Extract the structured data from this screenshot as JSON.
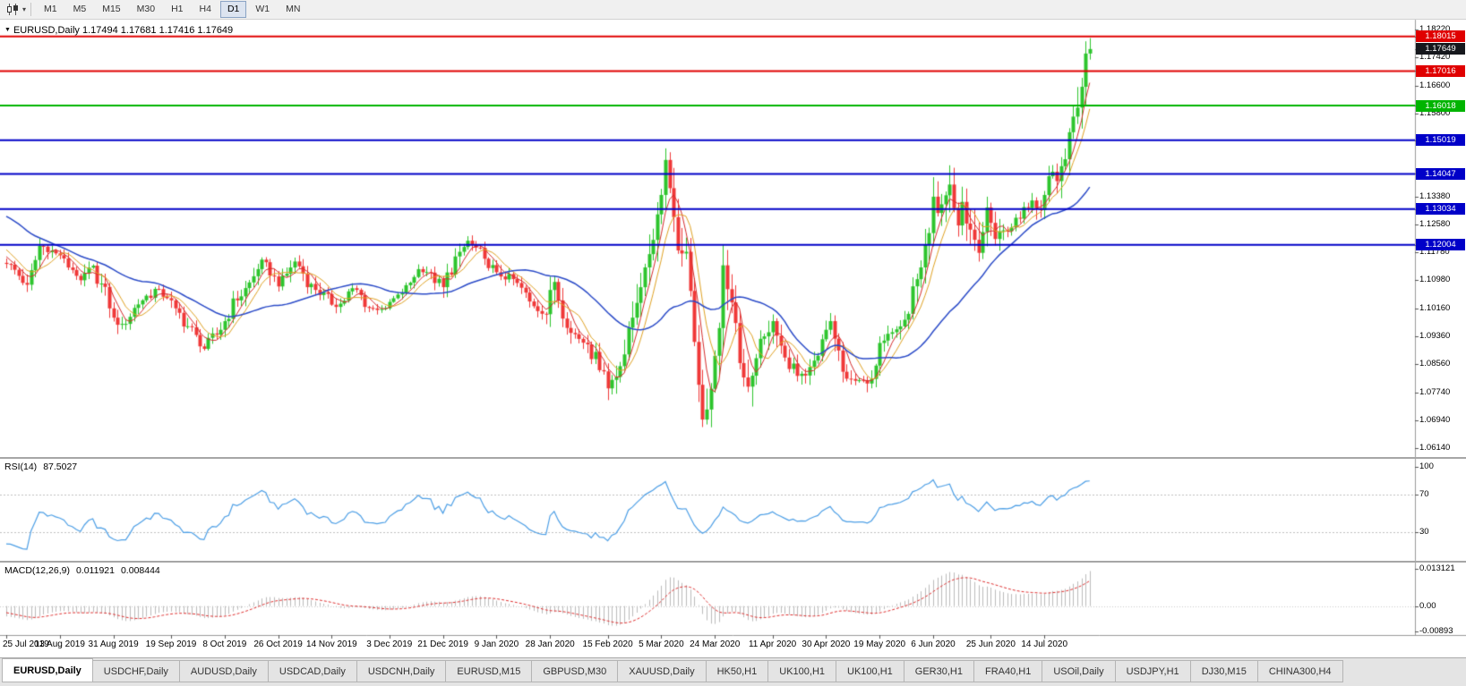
{
  "toolbar": {
    "timeframes": [
      "M1",
      "M5",
      "M15",
      "M30",
      "H1",
      "H4",
      "D1",
      "W1",
      "MN"
    ],
    "active_timeframe": "D1"
  },
  "icons": {
    "chart_type_caret": "▾",
    "symbol_marker": "▼"
  },
  "chart": {
    "title": "EURUSD,Daily 1.17494 1.17681 1.17416 1.17649"
  },
  "rsi": {
    "label": "RSI(14)",
    "value": "87.5027",
    "axis_labels": [
      "100",
      "70",
      "30"
    ],
    "level_lines": [
      70,
      30
    ]
  },
  "macd": {
    "label": "MACD(12,26,9)",
    "value_main": "0.011921",
    "value_signal": "0.008444",
    "axis_labels": [
      "0.013121",
      "0.00",
      "-0.00893"
    ]
  },
  "price_scale": {
    "labels": [
      "1.18220",
      "1.17420",
      "1.16600",
      "1.15800",
      "1.13380",
      "1.12580",
      "1.11780",
      "1.10980",
      "1.10160",
      "1.09360",
      "1.08560",
      "1.07740",
      "1.06940",
      "1.06140"
    ]
  },
  "date_axis": {
    "labels": [
      "25 Jul 2019",
      "13 Aug 2019",
      "31 Aug 2019",
      "19 Sep 2019",
      "8 Oct 2019",
      "26 Oct 2019",
      "14 Nov 2019",
      "3 Dec 2019",
      "21 Dec 2019",
      "9 Jan 2020",
      "28 Jan 2020",
      "15 Feb 2020",
      "5 Mar 2020",
      "24 Mar 2020",
      "11 Apr 2020",
      "30 Apr 2020",
      "19 May 2020",
      "6 Jun 2020",
      "25 Jun 2020",
      "14 Jul 2020"
    ],
    "bar_indices": [
      0,
      13,
      26,
      40,
      53,
      66,
      79,
      93,
      106,
      119,
      132,
      146,
      159,
      172,
      186,
      199,
      212,
      225,
      239,
      252
    ]
  },
  "tabs": {
    "items": [
      "EURUSD,Daily",
      "USDCHF,Daily",
      "AUDUSD,Daily",
      "USDCAD,Daily",
      "USDCNH,Daily",
      "EURUSD,M15",
      "GBPUSD,M30",
      "XAUUSD,Daily",
      "HK50,H1",
      "UK100,H1",
      "UK100,H1",
      "GER30,H1",
      "FRA40,H1",
      "USOil,Daily",
      "USDJPY,H1",
      "DJ30,M15",
      "CHINA300,H4"
    ],
    "active_index": 0
  },
  "chart_data": {
    "type": "candlestick",
    "symbol": "EURUSD",
    "period": "Daily",
    "ohlc_current": {
      "open": 1.17494,
      "high": 1.17681,
      "low": 1.17416,
      "close": 1.17649
    },
    "current_price": {
      "value": 1.17649,
      "bg": "#16181D"
    },
    "price_range": {
      "top": 1.18445,
      "bottom": 1.05905
    },
    "visible_bars": 264,
    "pre_bars": 100,
    "candle_colors": {
      "up": "#2DC52D",
      "down": "#F03838"
    },
    "levels": [
      {
        "price": 1.18015,
        "color": "#E00000"
      },
      {
        "price": 1.17016,
        "color": "#E00000"
      },
      {
        "price": 1.16018,
        "color": "#00B400"
      },
      {
        "price": 1.15019,
        "color": "#0000C8"
      },
      {
        "price": 1.14047,
        "color": "#0000C8"
      },
      {
        "price": 1.13034,
        "color": "#0000C8"
      },
      {
        "price": 1.12004,
        "color": "#0000C8"
      }
    ],
    "moving_averages": [
      {
        "period": 5,
        "color": "#D52B2B",
        "width": 1
      },
      {
        "period": 8,
        "color": "#E0A223",
        "width": 1
      },
      {
        "period": 30,
        "color": "#2B4BC8",
        "width": 1.5
      }
    ],
    "indicators": {
      "rsi": {
        "period": 14,
        "current": 87.5027,
        "color": "#4D9FE6"
      },
      "macd": {
        "fast": 12,
        "slow": 26,
        "signal": 9,
        "main": 0.011921,
        "signal_value": 0.008444,
        "scale_max": 0.013121,
        "scale_min": -0.00893,
        "histogram_color": "#BBBBBB",
        "signal_color": "#E03030"
      }
    },
    "close_anchors": [
      [
        -100,
        1.132
      ],
      [
        -75,
        1.122
      ],
      [
        -50,
        1.117
      ],
      [
        -35,
        1.126
      ],
      [
        -25,
        1.1385
      ],
      [
        -12,
        1.127
      ],
      [
        0,
        1.1145
      ],
      [
        5,
        1.1085
      ],
      [
        8,
        1.1197
      ],
      [
        13,
        1.117
      ],
      [
        18,
        1.1098
      ],
      [
        21,
        1.114
      ],
      [
        26,
        1.099
      ],
      [
        28,
        1.0972
      ],
      [
        33,
        1.104
      ],
      [
        36,
        1.1073
      ],
      [
        40,
        1.104
      ],
      [
        41,
        1.1017
      ],
      [
        46,
        1.094
      ],
      [
        48,
        1.09
      ],
      [
        53,
        1.098
      ],
      [
        56,
        1.104
      ],
      [
        61,
        1.113
      ],
      [
        63,
        1.115
      ],
      [
        66,
        1.108
      ],
      [
        70,
        1.1152
      ],
      [
        75,
        1.107
      ],
      [
        80,
        1.1021
      ],
      [
        84,
        1.1075
      ],
      [
        88,
        1.1018
      ],
      [
        92,
        1.1017
      ],
      [
        96,
        1.106
      ],
      [
        100,
        1.113
      ],
      [
        103,
        1.112
      ],
      [
        106,
        1.1078
      ],
      [
        110,
        1.118
      ],
      [
        112,
        1.1212
      ],
      [
        116,
        1.116
      ],
      [
        119,
        1.1121
      ],
      [
        124,
        1.109
      ],
      [
        128,
        1.1023
      ],
      [
        131,
        1.1
      ],
      [
        133,
        1.1093
      ],
      [
        137,
        1.0946
      ],
      [
        141,
        1.0913
      ],
      [
        145,
        1.0835
      ],
      [
        146,
        1.0786
      ],
      [
        149,
        1.085
      ],
      [
        152,
        1.099
      ],
      [
        155,
        1.1135
      ],
      [
        158,
        1.1288
      ],
      [
        160,
        1.1445
      ],
      [
        162,
        1.128
      ],
      [
        163,
        1.1184
      ],
      [
        165,
        1.118
      ],
      [
        167,
        1.092
      ],
      [
        169,
        1.0696
      ],
      [
        170,
        1.0725
      ],
      [
        171,
        1.0785
      ],
      [
        172,
        1.088
      ],
      [
        173,
        1.096
      ],
      [
        174,
        1.1141
      ],
      [
        176,
        1.1034
      ],
      [
        178,
        1.0859
      ],
      [
        180,
        1.0791
      ],
      [
        183,
        1.0929
      ],
      [
        184,
        1.0936
      ],
      [
        186,
        1.098
      ],
      [
        189,
        1.0875
      ],
      [
        192,
        1.0822
      ],
      [
        194,
        1.0823
      ],
      [
        197,
        1.088
      ],
      [
        199,
        1.0955
      ],
      [
        200,
        1.098
      ],
      [
        203,
        1.0834
      ],
      [
        206,
        1.0808
      ],
      [
        209,
        1.08
      ],
      [
        212,
        1.0917
      ],
      [
        215,
        1.0948
      ],
      [
        218,
        1.0984
      ],
      [
        221,
        1.1101
      ],
      [
        222,
        1.1135
      ],
      [
        224,
        1.1234
      ],
      [
        225,
        1.1339
      ],
      [
        226,
        1.1292
      ],
      [
        228,
        1.1343
      ],
      [
        229,
        1.1374
      ],
      [
        231,
        1.1256
      ],
      [
        232,
        1.1324
      ],
      [
        234,
        1.1244
      ],
      [
        236,
        1.1177
      ],
      [
        238,
        1.1308
      ],
      [
        240,
        1.1217
      ],
      [
        242,
        1.1242
      ],
      [
        244,
        1.125
      ],
      [
        247,
        1.1309
      ],
      [
        249,
        1.1328
      ],
      [
        251,
        1.13
      ],
      [
        252,
        1.1344
      ],
      [
        253,
        1.1398
      ],
      [
        254,
        1.1411
      ],
      [
        255,
        1.1384
      ],
      [
        256,
        1.1427
      ],
      [
        257,
        1.1447
      ],
      [
        258,
        1.1525
      ],
      [
        259,
        1.157
      ],
      [
        260,
        1.1596
      ],
      [
        261,
        1.1656
      ],
      [
        262,
        1.1752
      ],
      [
        263,
        1.17649
      ]
    ]
  }
}
